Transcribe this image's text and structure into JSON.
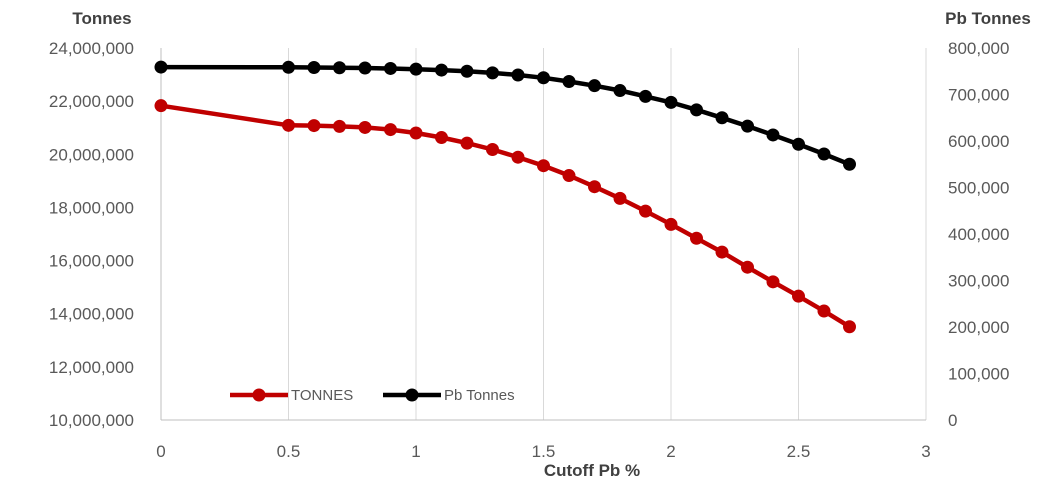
{
  "chart_data": {
    "type": "line",
    "xlabel": "Cutoff Pb %",
    "ylabel_left": "Tonnes",
    "ylabel_right": "Pb Tonnes",
    "xlim": [
      0,
      3
    ],
    "x_ticks": [
      "0",
      "0.5",
      "1",
      "1.5",
      "2",
      "2.5",
      "3"
    ],
    "ylim_left": [
      10000000,
      24000000
    ],
    "y_ticks_left": [
      "10,000,000",
      "12,000,000",
      "14,000,000",
      "16,000,000",
      "18,000,000",
      "20,000,000",
      "22,000,000",
      "24,000,000"
    ],
    "ylim_right": [
      0,
      800000
    ],
    "y_ticks_right": [
      "0",
      "100,000",
      "200,000",
      "300,000",
      "400,000",
      "500,000",
      "600,000",
      "700,000",
      "800,000"
    ],
    "grid": "vertical",
    "legend": "bottom-left",
    "x": [
      0,
      0.5,
      0.6,
      0.7,
      0.8,
      0.9,
      1.0,
      1.1,
      1.2,
      1.3,
      1.4,
      1.5,
      1.6,
      1.7,
      1.8,
      1.9,
      2.0,
      2.1,
      2.2,
      2.3,
      2.4,
      2.5,
      2.6,
      2.7
    ],
    "series": [
      {
        "name": "TONNES",
        "axis": "left",
        "color": "#c00000",
        "values": [
          21830000,
          21090000,
          21080000,
          21050000,
          21010000,
          20930000,
          20800000,
          20630000,
          20420000,
          20180000,
          19890000,
          19570000,
          19200000,
          18780000,
          18340000,
          17860000,
          17360000,
          16840000,
          16320000,
          15750000,
          15200000,
          14660000,
          14100000,
          13510000
        ]
      },
      {
        "name": "Pb Tonnes",
        "axis": "right",
        "color": "#000000",
        "values": [
          759000,
          758500,
          758000,
          757500,
          757000,
          756000,
          754500,
          752500,
          750000,
          746500,
          742000,
          736000,
          728000,
          719000,
          708500,
          696000,
          683000,
          667000,
          650000,
          632000,
          613000,
          593000,
          572000,
          550000
        ]
      }
    ]
  }
}
